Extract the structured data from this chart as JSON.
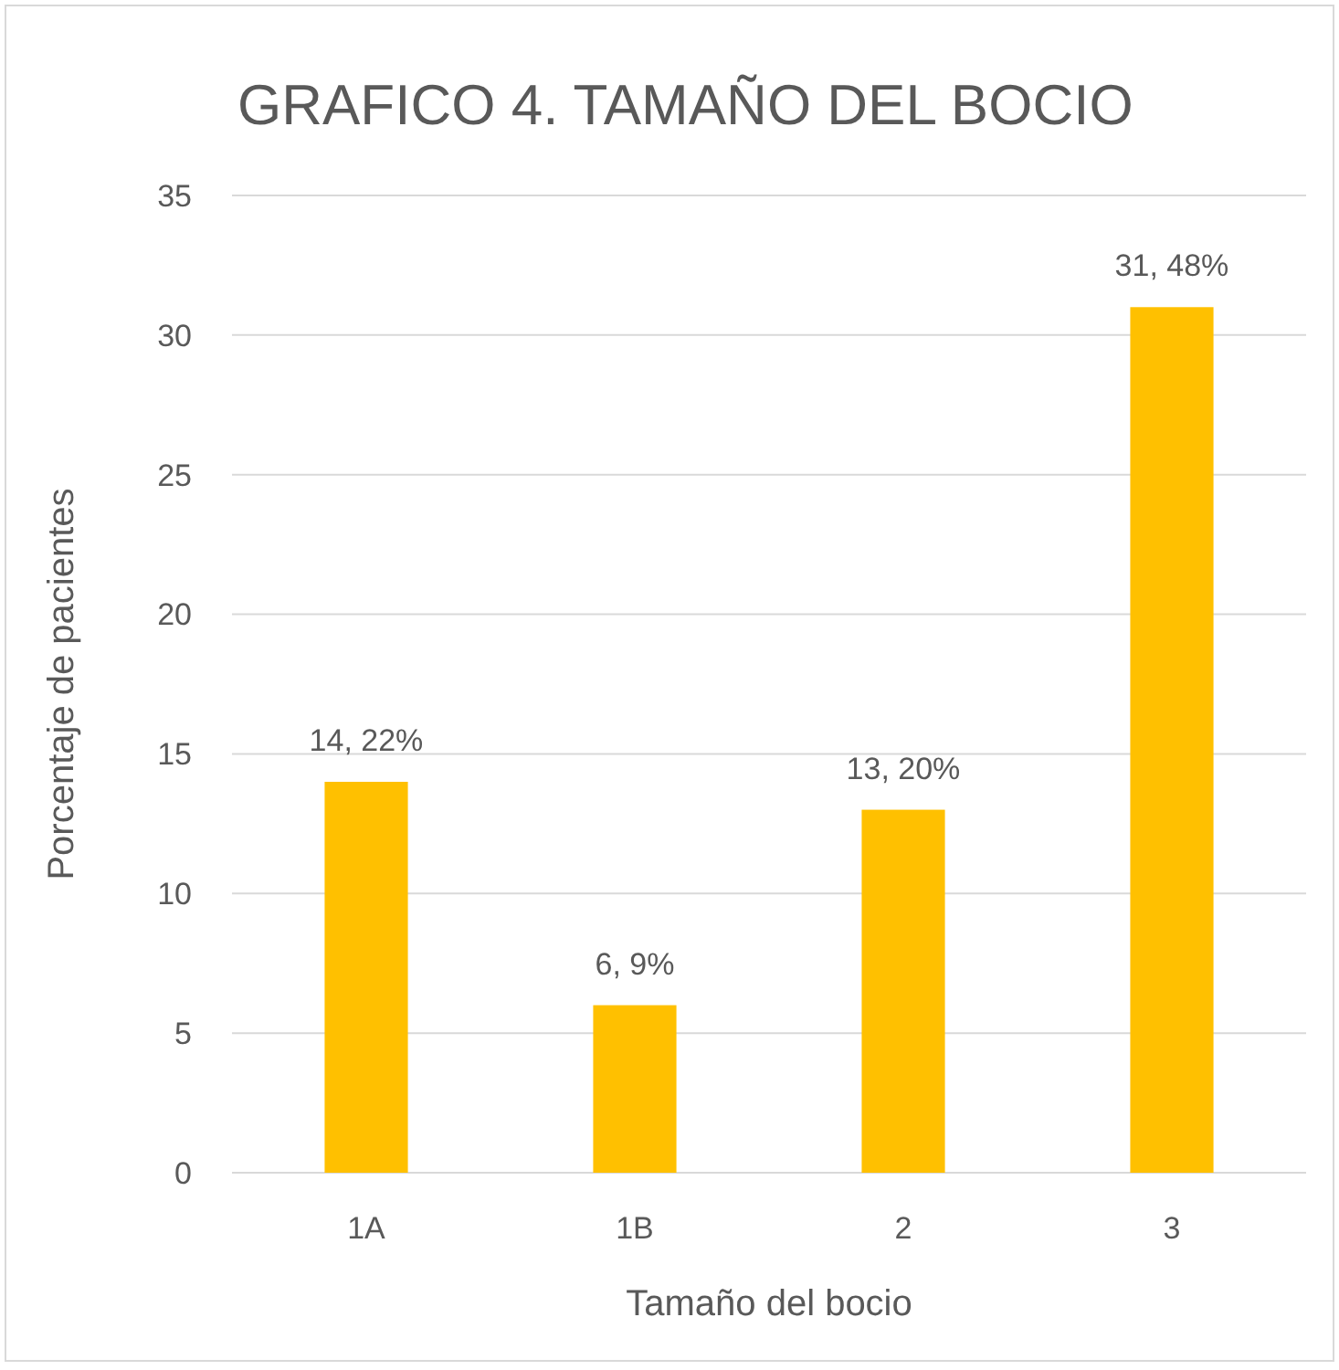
{
  "chart_data": {
    "type": "bar",
    "title": "GRAFICO 4. TAMAÑO DEL BOCIO",
    "xlabel": "Tamaño del bocio",
    "ylabel": "Porcentaje de pacientes",
    "categories": [
      "1A",
      "1B",
      "2",
      "3"
    ],
    "values": [
      14,
      6,
      13,
      31
    ],
    "value_labels": [
      "14, 22%",
      "6, 9%",
      "13, 20%",
      "31, 48%"
    ],
    "color": "#ffc000",
    "ylim": [
      0,
      35
    ],
    "yticks": [
      0,
      5,
      10,
      15,
      20,
      25,
      30,
      35
    ],
    "grid": "y"
  }
}
